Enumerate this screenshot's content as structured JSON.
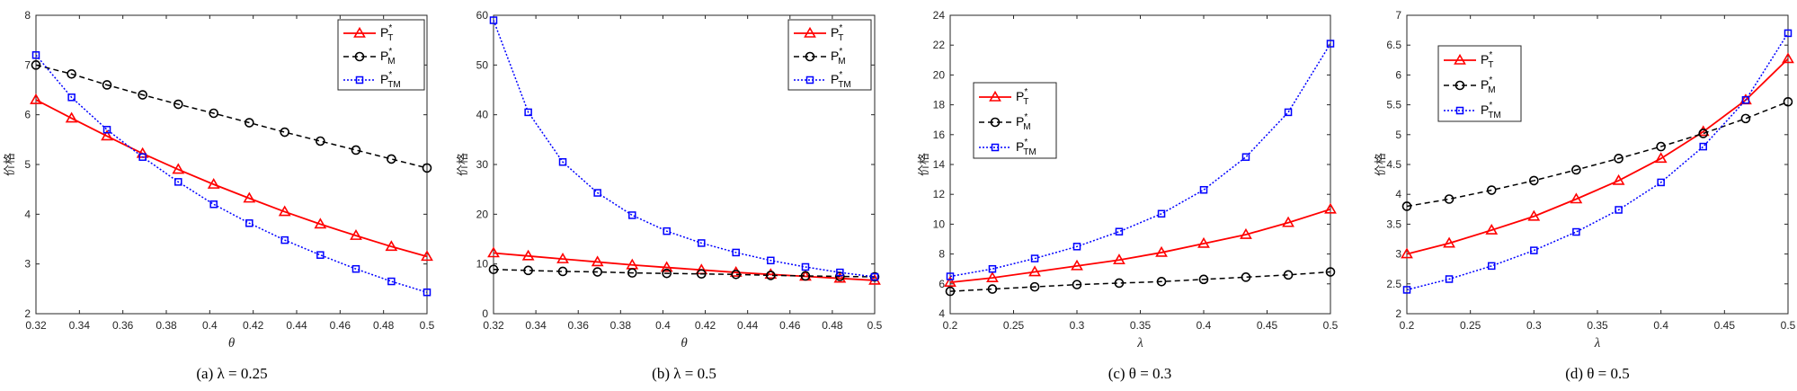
{
  "chart_data": [
    {
      "type": "line",
      "caption": "(a) λ = 0.25",
      "xlabel": "θ",
      "ylabel": "价格",
      "xlim": [
        0.32,
        0.5
      ],
      "ylim": [
        2,
        8
      ],
      "xticks": [
        "0.32",
        "0.34",
        "0.36",
        "0.38",
        "0.4",
        "0.42",
        "0.44",
        "0.46",
        "0.48",
        "0.5"
      ],
      "yticks": [
        "2",
        "3",
        "4",
        "5",
        "6",
        "7",
        "8"
      ],
      "legend_position": "top-right",
      "x": [
        0.32,
        0.3364,
        0.3527,
        0.3691,
        0.3855,
        0.4018,
        0.4182,
        0.4345,
        0.4509,
        0.4673,
        0.4836,
        0.5
      ],
      "series": [
        {
          "name": "P",
          "sup": "*",
          "sub": "T",
          "values": [
            6.3,
            5.93,
            5.57,
            5.22,
            4.9,
            4.6,
            4.32,
            4.05,
            3.8,
            3.57,
            3.35,
            3.15
          ]
        },
        {
          "name": "P",
          "sup": "*",
          "sub": "M",
          "values": [
            7.0,
            6.82,
            6.6,
            6.4,
            6.21,
            6.03,
            5.84,
            5.65,
            5.47,
            5.29,
            5.11,
            4.93
          ]
        },
        {
          "name": "P",
          "sup": "*",
          "sub": "TM",
          "values": [
            7.2,
            6.35,
            5.7,
            5.15,
            4.65,
            4.2,
            3.82,
            3.48,
            3.18,
            2.9,
            2.65,
            2.43
          ]
        }
      ]
    },
    {
      "type": "line",
      "caption": "(b) λ = 0.5",
      "xlabel": "θ",
      "ylabel": "价格",
      "xlim": [
        0.32,
        0.5
      ],
      "ylim": [
        0,
        60
      ],
      "xticks": [
        "0.32",
        "0.34",
        "0.36",
        "0.38",
        "0.4",
        "0.42",
        "0.44",
        "0.46",
        "0.48",
        "0.5"
      ],
      "yticks": [
        "0",
        "10",
        "20",
        "30",
        "40",
        "50",
        "60"
      ],
      "legend_position": "top-right",
      "x": [
        0.32,
        0.3364,
        0.3527,
        0.3691,
        0.3855,
        0.4018,
        0.4182,
        0.4345,
        0.4509,
        0.4673,
        0.4836,
        0.5
      ],
      "series": [
        {
          "name": "P",
          "sup": "*",
          "sub": "T",
          "values": [
            12.2,
            11.6,
            11.0,
            10.4,
            9.8,
            9.3,
            8.8,
            8.3,
            7.9,
            7.5,
            7.1,
            6.7
          ]
        },
        {
          "name": "P",
          "sup": "*",
          "sub": "M",
          "values": [
            8.9,
            8.7,
            8.5,
            8.4,
            8.2,
            8.1,
            8.0,
            7.9,
            7.7,
            7.6,
            7.5,
            7.4
          ]
        },
        {
          "name": "P",
          "sup": "*",
          "sub": "TM",
          "values": [
            59.0,
            40.5,
            30.5,
            24.3,
            19.8,
            16.6,
            14.2,
            12.3,
            10.7,
            9.4,
            8.3,
            7.4
          ]
        }
      ]
    },
    {
      "type": "line",
      "caption": "(c) θ = 0.3",
      "xlabel": "λ",
      "ylabel": "价格",
      "xlim": [
        0.2,
        0.5
      ],
      "ylim": [
        4,
        24
      ],
      "xticks": [
        "0.2",
        "0.25",
        "0.3",
        "0.35",
        "0.4",
        "0.45",
        "0.5"
      ],
      "yticks": [
        "4",
        "6",
        "8",
        "10",
        "12",
        "14",
        "16",
        "18",
        "20",
        "22",
        "24"
      ],
      "legend_position": "middle-left",
      "x": [
        0.2,
        0.2333,
        0.2667,
        0.3,
        0.3333,
        0.3667,
        0.4,
        0.4333,
        0.4667,
        0.5
      ],
      "series": [
        {
          "name": "P",
          "sup": "*",
          "sub": "T",
          "values": [
            6.1,
            6.4,
            6.8,
            7.2,
            7.6,
            8.1,
            8.7,
            9.3,
            10.1,
            11.0
          ]
        },
        {
          "name": "P",
          "sup": "*",
          "sub": "M",
          "values": [
            5.5,
            5.65,
            5.8,
            5.95,
            6.05,
            6.15,
            6.3,
            6.45,
            6.6,
            6.8
          ]
        },
        {
          "name": "P",
          "sup": "*",
          "sub": "TM",
          "values": [
            6.5,
            7.0,
            7.7,
            8.5,
            9.5,
            10.7,
            12.3,
            14.5,
            17.5,
            22.1
          ]
        }
      ]
    },
    {
      "type": "line",
      "caption": "(d) θ = 0.5",
      "xlabel": "λ",
      "ylabel": "价格",
      "xlim": [
        0.2,
        0.5
      ],
      "ylim": [
        2,
        7
      ],
      "xticks": [
        "0.2",
        "0.25",
        "0.3",
        "0.35",
        "0.4",
        "0.45",
        "0.5"
      ],
      "yticks": [
        "2",
        "2.5",
        "3",
        "3.5",
        "4",
        "4.5",
        "5",
        "5.5",
        "6",
        "6.5",
        "7"
      ],
      "legend_position": "top-left",
      "x": [
        0.2,
        0.2333,
        0.2667,
        0.3,
        0.3333,
        0.3667,
        0.4,
        0.4333,
        0.4667,
        0.5
      ],
      "series": [
        {
          "name": "P",
          "sup": "*",
          "sub": "T",
          "values": [
            3.0,
            3.18,
            3.4,
            3.63,
            3.92,
            4.23,
            4.6,
            5.05,
            5.58,
            6.27
          ]
        },
        {
          "name": "P",
          "sup": "*",
          "sub": "M",
          "values": [
            3.8,
            3.92,
            4.07,
            4.23,
            4.41,
            4.6,
            4.8,
            5.02,
            5.27,
            5.55
          ]
        },
        {
          "name": "P",
          "sup": "*",
          "sub": "TM",
          "values": [
            2.4,
            2.58,
            2.8,
            3.06,
            3.37,
            3.74,
            4.2,
            4.8,
            5.58,
            6.7
          ]
        }
      ]
    }
  ],
  "styles": {
    "series_colors": [
      "#ff0000",
      "#000000",
      "#0000ff"
    ],
    "axis_color": "#262626"
  }
}
